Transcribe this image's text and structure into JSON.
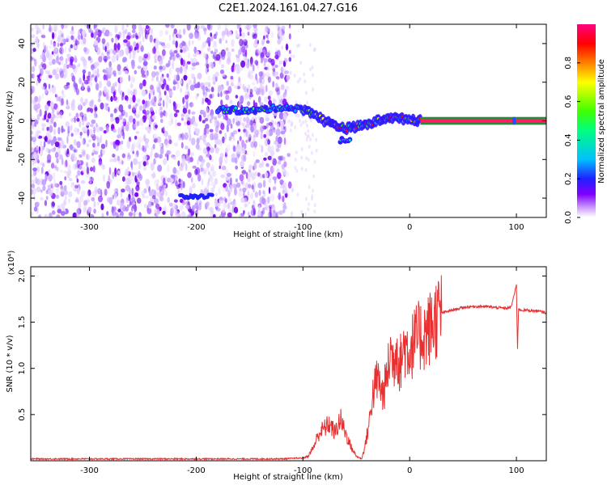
{
  "title": "C2E1.2024.161.04.27.G16",
  "chart_data": [
    {
      "type": "heatmap",
      "xlabel": "Height of straight line (km)",
      "ylabel": "Frequency (Hz)",
      "xlim": [
        -355,
        128
      ],
      "ylim": [
        -50,
        50
      ],
      "x_ticks": [
        -300,
        -200,
        -100,
        0,
        100
      ],
      "y_ticks": [
        -40,
        -20,
        0,
        20,
        40
      ],
      "colorbar": {
        "label": "Normalized spectral amplitude",
        "range": [
          0,
          1
        ],
        "ticks": [
          0.0,
          0.2,
          0.4,
          0.6,
          0.8
        ],
        "colors": [
          "#ffffff",
          "#d8b4ff",
          "#8000ff",
          "#2020ff",
          "#00c0ff",
          "#00ff80",
          "#40ff00",
          "#ffff00",
          "#ff8000",
          "#ff0000",
          "#ff0080"
        ]
      },
      "ridge": {
        "x": [
          -180,
          -150,
          -120,
          -100,
          -90,
          -80,
          -70,
          -60,
          -50,
          -40,
          -30,
          -20,
          -10,
          0,
          10,
          50,
          100,
          128
        ],
        "y": [
          6,
          5,
          7,
          6,
          4,
          0,
          -2,
          -4,
          -3,
          -2,
          0,
          2,
          1,
          1,
          0,
          0,
          0,
          0
        ]
      }
    },
    {
      "type": "line",
      "xlabel": "Height of straight line (km)",
      "ylabel": "SNR (10 * v/v)",
      "y_multiplier": "(x10⁴)",
      "xlim": [
        -355,
        128
      ],
      "ylim": [
        0,
        2.1
      ],
      "x_ticks": [
        -300,
        -200,
        -100,
        0,
        100
      ],
      "y_ticks": [
        0.5,
        1.0,
        1.5,
        2.0
      ],
      "color": "#e83030",
      "x": [
        -355,
        -300,
        -200,
        -120,
        -100,
        -95,
        -90,
        -85,
        -80,
        -75,
        -70,
        -65,
        -60,
        -55,
        -50,
        -45,
        -42,
        -38,
        -35,
        -30,
        -25,
        -20,
        -18,
        -15,
        -12,
        -10,
        -8,
        -5,
        0,
        5,
        10,
        15,
        20,
        25,
        30,
        40,
        50,
        60,
        70,
        80,
        90,
        95,
        100,
        101,
        102,
        105,
        110,
        120,
        128
      ],
      "y": [
        0.02,
        0.02,
        0.02,
        0.02,
        0.03,
        0.05,
        0.15,
        0.3,
        0.35,
        0.4,
        0.3,
        0.45,
        0.3,
        0.15,
        0.05,
        0.02,
        0.15,
        0.4,
        0.7,
        0.9,
        0.7,
        1.0,
        1.2,
        1.05,
        1.3,
        1.0,
        1.1,
        1.25,
        1.2,
        1.3,
        1.35,
        1.38,
        1.45,
        1.55,
        1.6,
        1.63,
        1.66,
        1.67,
        1.67,
        1.66,
        1.65,
        1.66,
        1.9,
        1.2,
        1.64,
        1.63,
        1.63,
        1.62,
        1.6
      ]
    }
  ]
}
